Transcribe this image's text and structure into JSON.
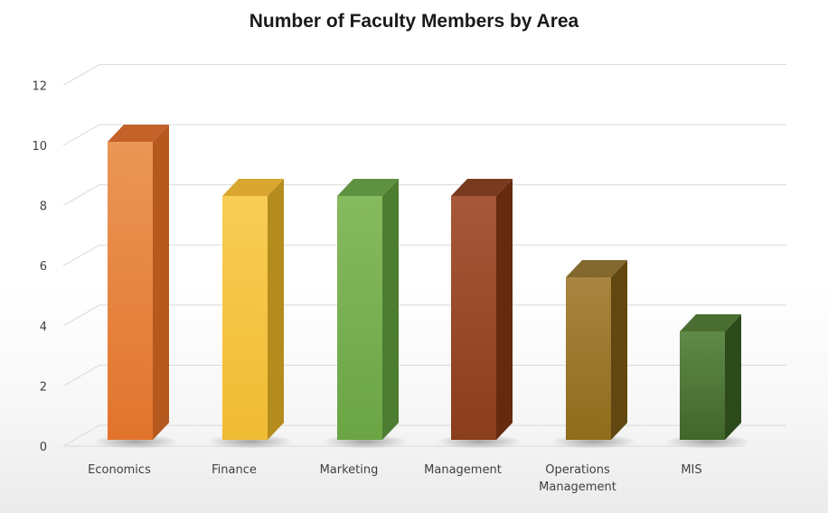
{
  "chart_data": {
    "type": "bar",
    "title": "Number of Faculty Members by Area",
    "xlabel": "",
    "ylabel": "",
    "categories": [
      [
        "Economics"
      ],
      [
        "Finance"
      ],
      [
        "Marketing"
      ],
      [
        "Management"
      ],
      [
        "Operations",
        "Management"
      ],
      [
        "MIS"
      ]
    ],
    "values": [
      11,
      9,
      9,
      9,
      6,
      4
    ],
    "ylim": [
      0,
      12
    ],
    "yticks": [
      "0",
      "2",
      "4",
      "6",
      "8",
      "10",
      "12"
    ],
    "grid": true,
    "style": "3d-column",
    "colors": [
      {
        "front_top": "#ea9656",
        "front_bottom": "#e2742d",
        "side": "#b5591f",
        "top": "#c4622a"
      },
      {
        "front_top": "#f8cd55",
        "front_bottom": "#f0bb33",
        "side": "#b48c1e",
        "top": "#d9a630"
      },
      {
        "front_top": "#86ba5e",
        "front_bottom": "#6ba544",
        "side": "#4d7d30",
        "top": "#5e9240"
      },
      {
        "front_top": "#a8573a",
        "front_bottom": "#8a3e1a",
        "side": "#652a10",
        "top": "#7a3a20"
      },
      {
        "front_top": "#a88540",
        "front_bottom": "#8f6b1c",
        "side": "#614710",
        "top": "#83682e"
      },
      {
        "front_top": "#5f8a48",
        "front_bottom": "#42662a",
        "side": "#2d4a1a",
        "top": "#4a6e32"
      }
    ]
  }
}
